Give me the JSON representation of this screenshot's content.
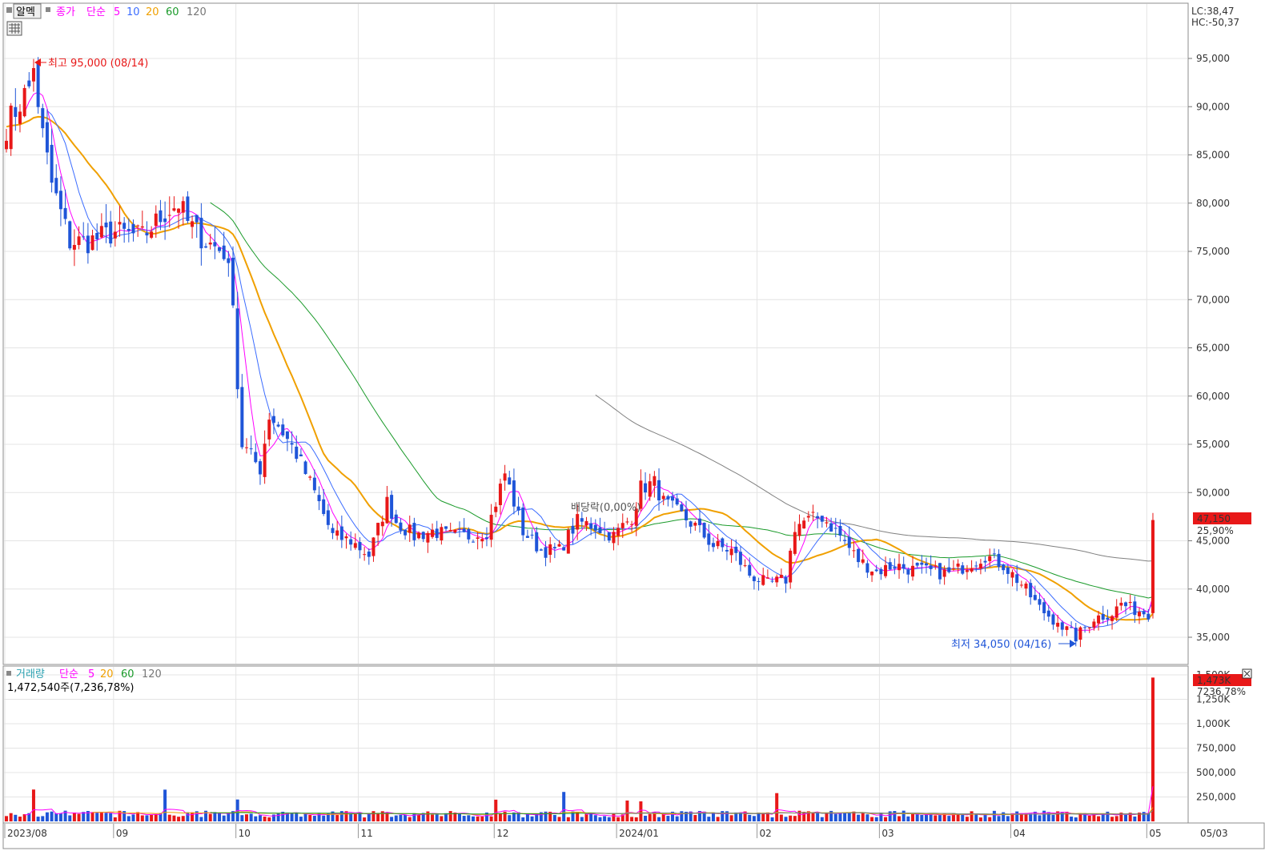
{
  "legend_price": {
    "name": "알멕",
    "items": [
      "종가",
      "단순",
      "5",
      "10",
      "20",
      "60",
      "120"
    ]
  },
  "legend_volume": {
    "items": [
      "거래량",
      "단순",
      "5",
      "20",
      "60",
      "120"
    ],
    "info": "1,472,540주(7,236,78%)"
  },
  "top_right": {
    "lc": "LC:38,47",
    "hc": "HC:-50,37"
  },
  "price_axis_labels": [
    "95,000",
    "90,000",
    "85,000",
    "80,000",
    "75,000",
    "70,000",
    "65,000",
    "60,000",
    "55,000",
    "50,000",
    "45,000",
    "40,000",
    "35,000"
  ],
  "volume_axis_labels": [
    "1,500K",
    "1,250K",
    "1,000K",
    "750,000",
    "500,000",
    "250,000"
  ],
  "x_labels": [
    "2023/08",
    "09",
    "10",
    "11",
    "12",
    "2024/01",
    "02",
    "03",
    "04",
    "05",
    "05/03"
  ],
  "current_price": {
    "value": "47,150",
    "pct": "25,90%"
  },
  "current_volume": {
    "value": "1,473K",
    "pct": "7236,78%"
  },
  "annotations": {
    "high": "최고 95,000 (08/14)",
    "low": "최저 34,050 (04/16)",
    "dividend": "배당락(0,00%)"
  },
  "colors": {
    "up": "#e81818",
    "down": "#1f55d8",
    "ma5": "#ff00ff",
    "ma10": "#3b6cff",
    "ma20": "#f0a000",
    "ma60": "#1a9a2a",
    "ma120": "#808080"
  },
  "chart_data": {
    "type": "candlestick",
    "price_ylim": [
      31000,
      98000
    ],
    "volume_ylim": [
      0,
      1600000
    ],
    "months": [
      {
        "label": "2023/08",
        "start": 0
      },
      {
        "label": "09",
        "start": 24
      },
      {
        "label": "10",
        "start": 51
      },
      {
        "label": "11",
        "start": 78
      },
      {
        "label": "12",
        "start": 108
      },
      {
        "label": "2024/01",
        "start": 135
      },
      {
        "label": "02",
        "start": 166
      },
      {
        "label": "03",
        "start": 193
      },
      {
        "label": "04",
        "start": 222
      },
      {
        "label": "05",
        "start": 252
      }
    ],
    "close_points": [
      [
        0,
        88000
      ],
      [
        5,
        92000
      ],
      [
        6,
        94000
      ],
      [
        8,
        87000
      ],
      [
        10,
        82000
      ],
      [
        14,
        76000
      ],
      [
        18,
        76000
      ],
      [
        24,
        77000
      ],
      [
        30,
        76500
      ],
      [
        35,
        79000
      ],
      [
        38,
        80000
      ],
      [
        40,
        78000
      ],
      [
        44,
        76000
      ],
      [
        48,
        75000
      ],
      [
        50,
        70500
      ],
      [
        51,
        61000
      ],
      [
        52,
        55000
      ],
      [
        56,
        52500
      ],
      [
        58,
        58000
      ],
      [
        60,
        57000
      ],
      [
        64,
        54000
      ],
      [
        68,
        50000
      ],
      [
        72,
        45500
      ],
      [
        76,
        45000
      ],
      [
        80,
        43500
      ],
      [
        84,
        49000
      ],
      [
        86,
        47000
      ],
      [
        90,
        45500
      ],
      [
        94,
        46000
      ],
      [
        98,
        45500
      ],
      [
        102,
        45500
      ],
      [
        106,
        46000
      ],
      [
        108,
        49000
      ],
      [
        110,
        52000
      ],
      [
        114,
        46000
      ],
      [
        118,
        44000
      ],
      [
        122,
        44000
      ],
      [
        126,
        47000
      ],
      [
        130,
        46500
      ],
      [
        134,
        45500
      ],
      [
        138,
        47500
      ],
      [
        140,
        50500
      ],
      [
        143,
        51000
      ],
      [
        145,
        49000
      ],
      [
        148,
        48000
      ],
      [
        152,
        46500
      ],
      [
        156,
        44500
      ],
      [
        160,
        44000
      ],
      [
        164,
        41500
      ],
      [
        168,
        40500
      ],
      [
        172,
        41000
      ],
      [
        174,
        46500
      ],
      [
        176,
        47000
      ],
      [
        180,
        47500
      ],
      [
        184,
        45500
      ],
      [
        188,
        43000
      ],
      [
        192,
        41800
      ],
      [
        196,
        42500
      ],
      [
        200,
        42000
      ],
      [
        204,
        41800
      ],
      [
        208,
        41600
      ],
      [
        212,
        42500
      ],
      [
        216,
        43500
      ],
      [
        220,
        42500
      ],
      [
        224,
        40500
      ],
      [
        228,
        38000
      ],
      [
        232,
        36500
      ],
      [
        236,
        35000
      ],
      [
        240,
        37000
      ],
      [
        244,
        37500
      ],
      [
        246,
        38500
      ],
      [
        248,
        38000
      ],
      [
        252,
        37500
      ],
      [
        253,
        47150
      ]
    ],
    "close_last": 47150,
    "high": {
      "value": 95000,
      "date": "08/14"
    },
    "low": {
      "value": 34050,
      "date": "04/16"
    },
    "volume_last": 1472540
  }
}
